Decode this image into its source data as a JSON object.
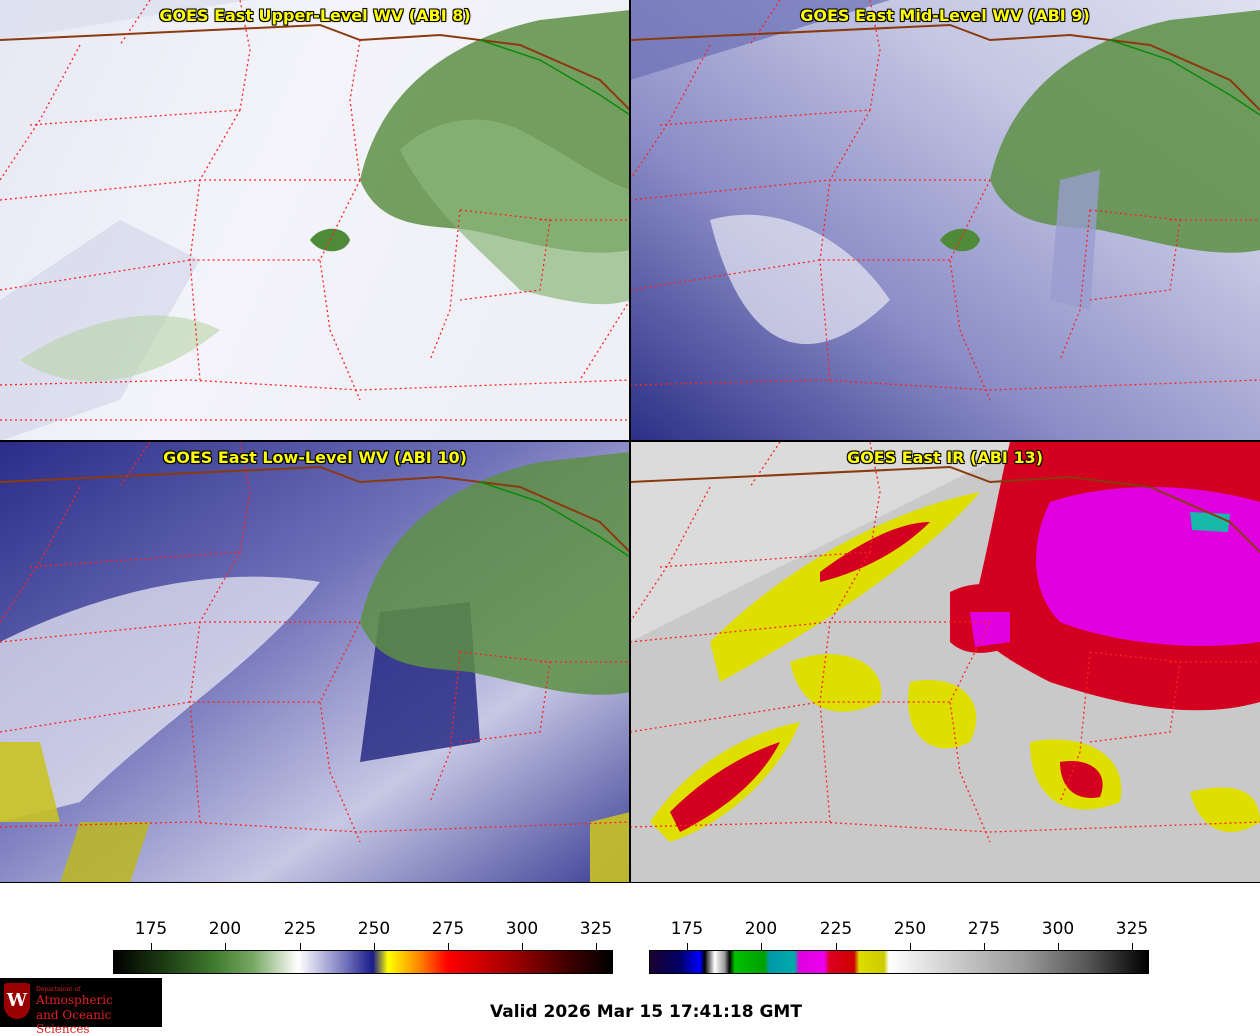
{
  "panels": [
    {
      "title": "GOES East Upper-Level WV (ABI 8)"
    },
    {
      "title": "GOES East Mid-Level WV (ABI 9)"
    },
    {
      "title": "GOES East Low-Level WV (ABI 10)"
    },
    {
      "title": "GOES East IR (ABI 13)"
    }
  ],
  "colorbars": {
    "wv": {
      "ticks": [
        "175",
        "200",
        "225",
        "250",
        "275",
        "300",
        "325"
      ]
    },
    "ir": {
      "ticks": [
        "175",
        "200",
        "225",
        "250",
        "275",
        "300",
        "325"
      ]
    }
  },
  "logo": {
    "dept": "Department of",
    "line1": "Atmospheric",
    "line2": "and Oceanic Sciences",
    "shield": "W"
  },
  "footer": {
    "valid": "Valid 2026 Mar 15 17:41:18 GMT"
  },
  "colors": {
    "border_state": "#ff2020",
    "border_country": "#8b3a0f",
    "border_lake": "#0a8a0a",
    "title_text": "#ffff00"
  }
}
